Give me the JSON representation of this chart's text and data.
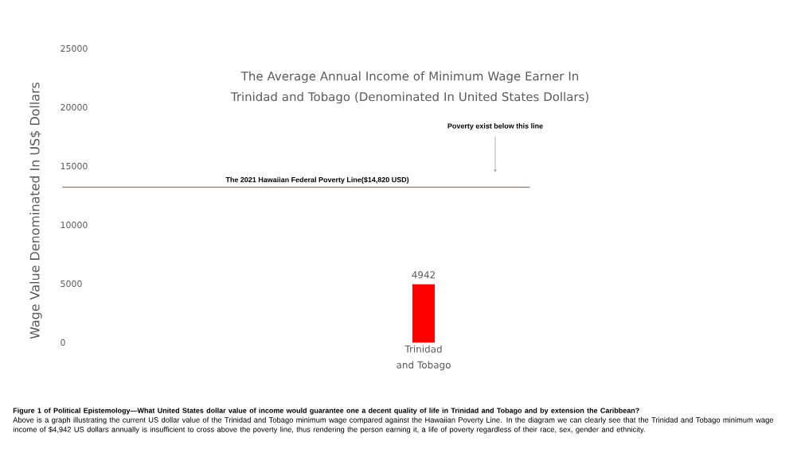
{
  "chart_data": {
    "type": "bar",
    "title": "The Average Annual Income of Minimum Wage Earner In Trinidad and Tobago (Denominated In United States Dollars)",
    "ylabel": "Wage Value Denominated In US$ Dollars",
    "categories": [
      "Trinidad and Tobago"
    ],
    "values": [
      4942
    ],
    "color": "#ff0000",
    "ylim": [
      0,
      25000
    ],
    "yticks": [
      0,
      5000,
      10000,
      15000,
      20000,
      25000
    ],
    "data_labels": true,
    "ref_lines": [
      {
        "axis": "y",
        "value": 13200,
        "label": "The 2021 Hawaiian Federal Poverty Line($14,820 USD)",
        "color": "#c0392b"
      }
    ],
    "annotations": [
      "Poverty exist below this line",
      "Figure 1 of Political Epistemology—What United States dollar value of income would guarantee one a decent quality of life in Trinidad and Tobago and by extension the Caribbean?",
      "Above is a graph illustrating the current US dollar value of the Trinidad and Tobago minimum wage compared against the Hawaiian Poverty Line. In the diagram we can clearly see that the Trinidad and Tobago minimum wage income of $4,942 US dollars annually is insufficient to cross above the poverty line, thus rendering the person earning it, a life of poverty regardless of their race, sex, gender and ethnicity."
    ]
  }
}
